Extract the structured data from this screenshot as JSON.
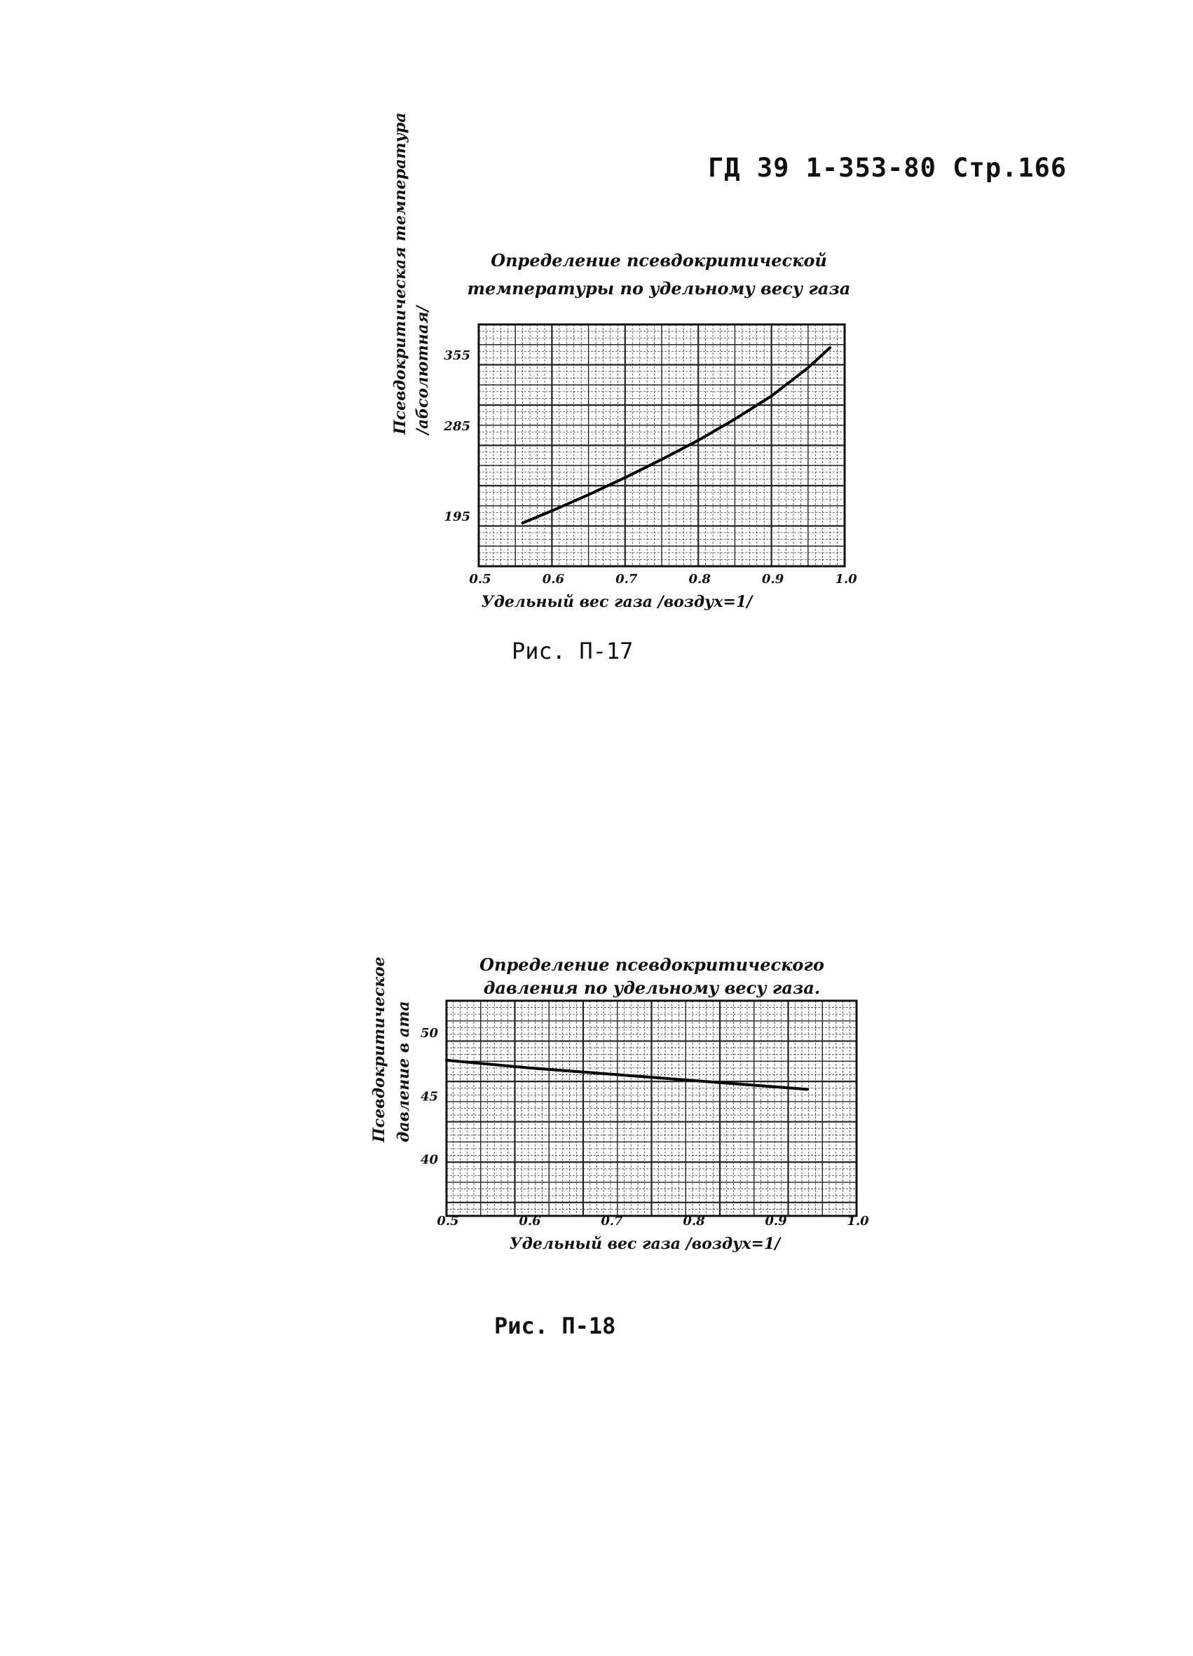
{
  "header": {
    "doc_ref": "ГД 39 1-353-80 Стр.166"
  },
  "chart_data": [
    {
      "type": "line",
      "title": "Определение псевдокритической температуры по удельному весу газа",
      "title_lines": [
        "Определение псевдокритической",
        "температуры по удельному весу газа"
      ],
      "xlabel": "Удельный вес газа /воздух=1/",
      "ylabel_lines": [
        "Псевдокритическая температура",
        "/абсолютная/"
      ],
      "xlim": [
        0.5,
        1.0
      ],
      "ylim": [
        145,
        385
      ],
      "x_ticks": [
        "0.5",
        "0.6",
        "0.7",
        "0.8",
        "0.9",
        "1.0"
      ],
      "y_ticks": [
        {
          "value": 195,
          "label": "195"
        },
        {
          "value": 285,
          "label": "285"
        },
        {
          "value": 355,
          "label": "355"
        }
      ],
      "grid": true,
      "series": [
        {
          "x": [
            0.56,
            0.6,
            0.65,
            0.7,
            0.75,
            0.8,
            0.85,
            0.9,
            0.95,
            0.98
          ],
          "y": [
            188,
            200,
            216,
            233,
            251,
            270,
            291,
            314,
            342,
            362
          ]
        }
      ],
      "caption": "Рис. П-17"
    },
    {
      "type": "line",
      "title": "Определение псевдокритического давления по удельному весу газа.",
      "title_lines": [
        "Определение псевдокритического",
        "давления по удельному весу газа."
      ],
      "xlabel": "Удельный вес газа /воздух=1/",
      "ylabel_lines": [
        "Псевдокритическое",
        "давление в ата"
      ],
      "xlim": [
        0.5,
        1.0
      ],
      "ylim": [
        35.5,
        52.5
      ],
      "x_ticks": [
        "0.5",
        "0.6",
        "0.7",
        "0.8",
        "0.9",
        "1.0"
      ],
      "y_ticks": [
        {
          "value": 40,
          "label": "40"
        },
        {
          "value": 45,
          "label": "45"
        },
        {
          "value": 50,
          "label": "50"
        }
      ],
      "grid": true,
      "series": [
        {
          "x": [
            0.5,
            0.6,
            0.7,
            0.8,
            0.9,
            0.94
          ],
          "y": [
            47.8,
            47.2,
            46.7,
            46.2,
            45.7,
            45.5
          ]
        }
      ],
      "caption": "Рис. П-18"
    }
  ]
}
